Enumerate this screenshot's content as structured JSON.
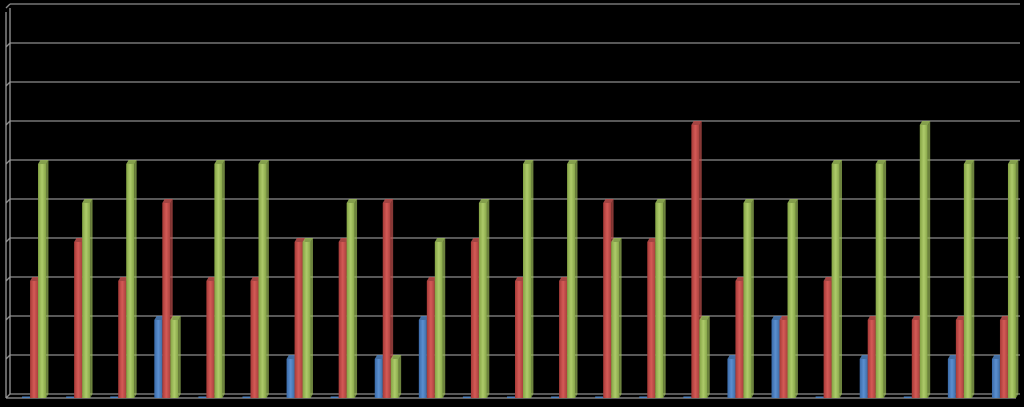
{
  "chart_data": {
    "type": "bar",
    "categories": [
      "",
      "",
      "",
      "",
      "",
      "",
      "",
      "",
      "",
      "",
      "",
      "",
      "",
      "",
      "",
      "",
      "",
      "",
      "",
      "",
      "",
      "",
      ""
    ],
    "ylim": [
      0,
      10
    ],
    "grid": true,
    "series": [
      {
        "color": "#4f81bd",
        "values": [
          0,
          0,
          0,
          2,
          0,
          0,
          1,
          0,
          1,
          2,
          0,
          0,
          0,
          0,
          0,
          0,
          1,
          2,
          0,
          1,
          0,
          1,
          1
        ]
      },
      {
        "color": "#c0504d",
        "values": [
          3,
          4,
          3,
          5,
          3,
          3,
          4,
          4,
          5,
          3,
          4,
          3,
          3,
          5,
          4,
          7,
          3,
          2,
          3,
          2,
          2,
          2,
          2
        ]
      },
      {
        "color": "#9bbb59",
        "values": [
          6,
          5,
          6,
          2,
          6,
          6,
          4,
          5,
          1,
          4,
          5,
          6,
          6,
          4,
          5,
          2,
          5,
          5,
          6,
          6,
          7,
          6,
          6
        ]
      }
    ]
  }
}
